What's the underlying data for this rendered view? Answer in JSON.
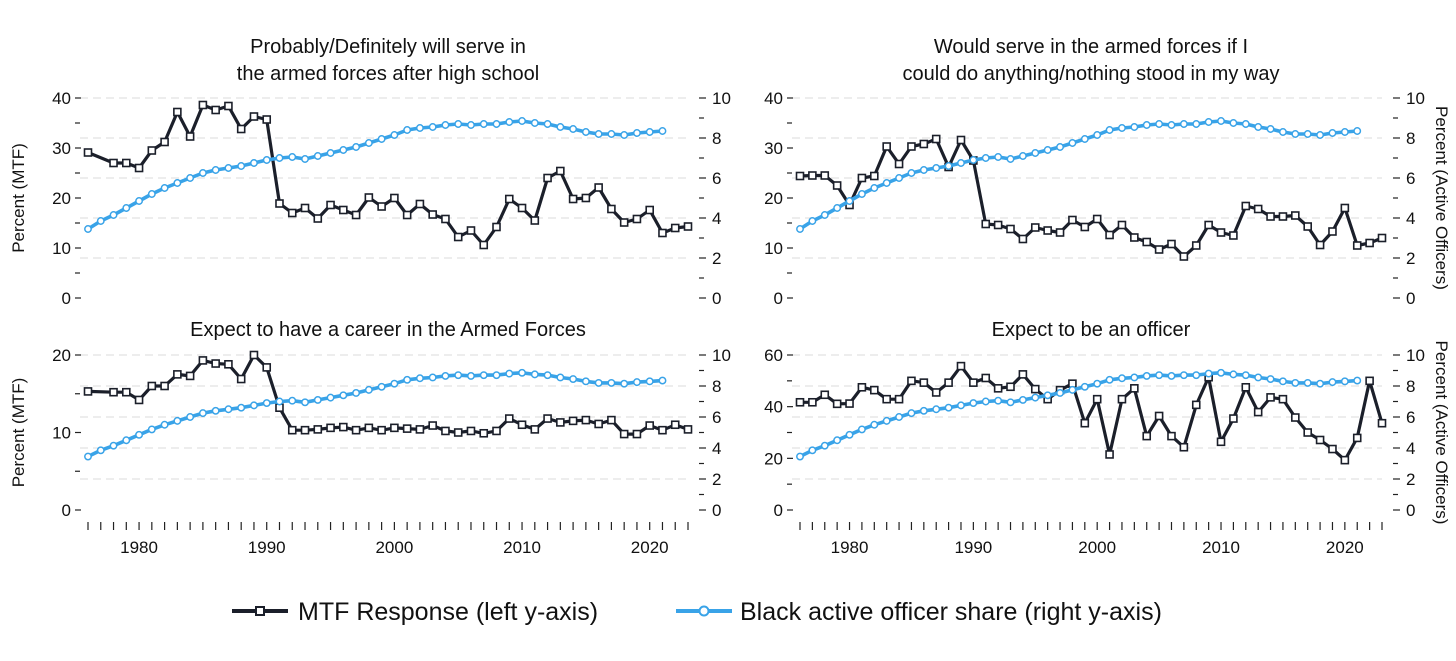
{
  "legend": {
    "mtf_label": "MTF Response (left y-axis)",
    "black_label": "Black active officer share (right y-axis)"
  },
  "colors": {
    "mtf": "#1b1f2a",
    "black": "#39a3e8",
    "grid": "#e2e2e2"
  },
  "chart_data": [
    {
      "type": "line",
      "title": [
        "Probably/Definitely will serve in",
        "the armed forces after high school"
      ],
      "ylabel_left": "Percent (MTF)",
      "ylabel_right": "",
      "xlim": [
        1976,
        2023
      ],
      "ylim_left": [
        0,
        40
      ],
      "ylim_right": [
        0,
        10
      ],
      "yticks_left": [
        0,
        10,
        20,
        30,
        40
      ],
      "yticks_right": [
        0,
        2,
        4,
        6,
        8,
        10
      ],
      "xticks": [
        1980,
        1990,
        2000,
        2010,
        2020
      ],
      "series": [
        {
          "name": "MTF Response (left y-axis)",
          "x": [
            1976,
            1978,
            1979,
            1980,
            1981,
            1982,
            1983,
            1984,
            1985,
            1986,
            1987,
            1988,
            1989,
            1990,
            1991,
            1992,
            1993,
            1994,
            1995,
            1996,
            1997,
            1998,
            1999,
            2000,
            2001,
            2002,
            2003,
            2004,
            2005,
            2006,
            2007,
            2008,
            2009,
            2010,
            2011,
            2012,
            2013,
            2014,
            2015,
            2016,
            2017,
            2018,
            2019,
            2020,
            2021,
            2022,
            2023
          ],
          "values": [
            29.1,
            27,
            27,
            26,
            29.5,
            31.2,
            37.2,
            32.3,
            38.6,
            37.6,
            38.4,
            33.8,
            36.3,
            35.7,
            18.9,
            17,
            18,
            15.9,
            18.6,
            17.6,
            16.6,
            20.1,
            18.3,
            20,
            16.6,
            18.8,
            16.7,
            15.8,
            12.2,
            13.5,
            10.6,
            14.2,
            19.8,
            18,
            15.5,
            24,
            25.4,
            19.8,
            20,
            22.1,
            17.8,
            15.1,
            15.8,
            17.6,
            13,
            14,
            14.3
          ]
        },
        {
          "name": "Black active officer share (right y-axis)",
          "x": [
            1976,
            1977,
            1978,
            1979,
            1980,
            1981,
            1982,
            1983,
            1984,
            1985,
            1986,
            1987,
            1988,
            1989,
            1990,
            1991,
            1992,
            1993,
            1994,
            1995,
            1996,
            1997,
            1998,
            1999,
            2000,
            2001,
            2002,
            2003,
            2004,
            2005,
            2006,
            2007,
            2008,
            2009,
            2010,
            2011,
            2012,
            2013,
            2014,
            2015,
            2016,
            2017,
            2018,
            2019,
            2020,
            2021
          ],
          "values": [
            3.45,
            3.85,
            4.15,
            4.5,
            4.85,
            5.2,
            5.5,
            5.75,
            6.0,
            6.25,
            6.4,
            6.5,
            6.6,
            6.75,
            6.9,
            7.0,
            7.05,
            6.95,
            7.1,
            7.25,
            7.4,
            7.55,
            7.75,
            7.95,
            8.15,
            8.4,
            8.5,
            8.55,
            8.65,
            8.7,
            8.65,
            8.7,
            8.7,
            8.8,
            8.85,
            8.75,
            8.7,
            8.55,
            8.45,
            8.3,
            8.2,
            8.2,
            8.15,
            8.25,
            8.3,
            8.35
          ]
        }
      ]
    },
    {
      "type": "line",
      "title": [
        "Would serve in the armed forces if I",
        "could do anything/nothing stood in my way"
      ],
      "ylabel_left": "",
      "ylabel_right": "Percent (Active Officers)",
      "xlim": [
        1976,
        2023
      ],
      "ylim_left": [
        0,
        40
      ],
      "ylim_right": [
        0,
        10
      ],
      "yticks_left": [
        0,
        10,
        20,
        30,
        40
      ],
      "yticks_right": [
        0,
        2,
        4,
        6,
        8,
        10
      ],
      "xticks": [
        1980,
        1990,
        2000,
        2010,
        2020
      ],
      "series": [
        {
          "name": "MTF Response (left y-axis)",
          "x": [
            1976,
            1977,
            1978,
            1979,
            1980,
            1981,
            1982,
            1983,
            1984,
            1985,
            1986,
            1987,
            1988,
            1989,
            1990,
            1991,
            1992,
            1993,
            1994,
            1995,
            1996,
            1997,
            1998,
            1999,
            2000,
            2001,
            2002,
            2003,
            2004,
            2005,
            2006,
            2007,
            2008,
            2009,
            2010,
            2011,
            2012,
            2013,
            2014,
            2015,
            2016,
            2017,
            2018,
            2019,
            2020,
            2021,
            2022,
            2023
          ],
          "values": [
            24.4,
            24.5,
            24.5,
            22.5,
            18.6,
            24,
            24.4,
            30.3,
            26.8,
            30.3,
            30.8,
            31.8,
            26.2,
            31.6,
            27.5,
            14.8,
            14.6,
            13.8,
            11.8,
            14.1,
            13.5,
            13.1,
            15.6,
            14.2,
            15.8,
            12.6,
            14.6,
            12.1,
            11.2,
            9.7,
            10.8,
            8.3,
            10.5,
            14.6,
            13.1,
            12.5,
            18.4,
            17.8,
            16.3,
            16.3,
            16.5,
            14.3,
            10.6,
            13.3,
            18,
            10.5,
            11,
            12
          ]
        },
        {
          "name": "Black active officer share (right y-axis)",
          "x": [
            1976,
            1977,
            1978,
            1979,
            1980,
            1981,
            1982,
            1983,
            1984,
            1985,
            1986,
            1987,
            1988,
            1989,
            1990,
            1991,
            1992,
            1993,
            1994,
            1995,
            1996,
            1997,
            1998,
            1999,
            2000,
            2001,
            2002,
            2003,
            2004,
            2005,
            2006,
            2007,
            2008,
            2009,
            2010,
            2011,
            2012,
            2013,
            2014,
            2015,
            2016,
            2017,
            2018,
            2019,
            2020,
            2021
          ],
          "values": [
            3.45,
            3.85,
            4.15,
            4.5,
            4.85,
            5.2,
            5.5,
            5.75,
            6.0,
            6.25,
            6.4,
            6.5,
            6.6,
            6.75,
            6.9,
            7.0,
            7.05,
            6.95,
            7.1,
            7.25,
            7.4,
            7.55,
            7.75,
            7.95,
            8.15,
            8.4,
            8.5,
            8.55,
            8.65,
            8.7,
            8.65,
            8.7,
            8.7,
            8.8,
            8.85,
            8.75,
            8.7,
            8.55,
            8.45,
            8.3,
            8.2,
            8.2,
            8.15,
            8.25,
            8.3,
            8.35
          ]
        }
      ]
    },
    {
      "type": "line",
      "title": [
        "Expect to have a career in the Armed Forces"
      ],
      "ylabel_left": "Percent (MTF)",
      "ylabel_right": "",
      "xlim": [
        1976,
        2023
      ],
      "ylim_left": [
        0,
        20
      ],
      "ylim_right": [
        0,
        10
      ],
      "yticks_left": [
        0,
        10,
        20
      ],
      "yticks_left_minor": [
        5,
        15
      ],
      "yticks_right": [
        0,
        2,
        4,
        6,
        8,
        10
      ],
      "xticks": [
        1980,
        1990,
        2000,
        2010,
        2020
      ],
      "series": [
        {
          "name": "MTF Response (left y-axis)",
          "x": [
            1976,
            1978,
            1979,
            1980,
            1981,
            1982,
            1983,
            1984,
            1985,
            1986,
            1987,
            1988,
            1989,
            1990,
            1991,
            1992,
            1993,
            1994,
            1995,
            1996,
            1997,
            1998,
            1999,
            2000,
            2001,
            2002,
            2003,
            2004,
            2005,
            2006,
            2007,
            2008,
            2009,
            2010,
            2011,
            2012,
            2013,
            2014,
            2015,
            2016,
            2017,
            2018,
            2019,
            2020,
            2021,
            2022,
            2023
          ],
          "values": [
            15.3,
            15.2,
            15.2,
            14.2,
            16,
            16,
            17.5,
            17.3,
            19.3,
            18.9,
            18.8,
            16.9,
            20,
            18.4,
            13.2,
            10.3,
            10.3,
            10.4,
            10.6,
            10.7,
            10.3,
            10.6,
            10.3,
            10.6,
            10.5,
            10.4,
            10.9,
            10.2,
            10,
            10.2,
            9.9,
            10.2,
            11.8,
            11,
            10.4,
            11.8,
            11.3,
            11.5,
            11.6,
            11.1,
            11.6,
            9.8,
            9.8,
            10.9,
            10.3,
            11,
            10.4
          ]
        },
        {
          "name": "Black active officer share (right y-axis)",
          "x": [
            1976,
            1977,
            1978,
            1979,
            1980,
            1981,
            1982,
            1983,
            1984,
            1985,
            1986,
            1987,
            1988,
            1989,
            1990,
            1991,
            1992,
            1993,
            1994,
            1995,
            1996,
            1997,
            1998,
            1999,
            2000,
            2001,
            2002,
            2003,
            2004,
            2005,
            2006,
            2007,
            2008,
            2009,
            2010,
            2011,
            2012,
            2013,
            2014,
            2015,
            2016,
            2017,
            2018,
            2019,
            2020,
            2021
          ],
          "values": [
            3.45,
            3.85,
            4.15,
            4.5,
            4.85,
            5.2,
            5.5,
            5.75,
            6.0,
            6.25,
            6.4,
            6.5,
            6.6,
            6.75,
            6.9,
            7.0,
            7.05,
            6.95,
            7.1,
            7.25,
            7.4,
            7.55,
            7.75,
            7.95,
            8.15,
            8.4,
            8.5,
            8.55,
            8.65,
            8.7,
            8.65,
            8.7,
            8.7,
            8.8,
            8.85,
            8.75,
            8.7,
            8.55,
            8.45,
            8.3,
            8.2,
            8.2,
            8.15,
            8.25,
            8.3,
            8.35
          ]
        }
      ]
    },
    {
      "type": "line",
      "title": [
        "Expect to be an officer"
      ],
      "ylabel_left": "",
      "ylabel_right": "Percent (Active Officers)",
      "xlim": [
        1976,
        2023
      ],
      "ylim_left": [
        0,
        60
      ],
      "ylim_right": [
        0,
        10
      ],
      "yticks_left": [
        0,
        20,
        40,
        60
      ],
      "yticks_left_minor": [
        10,
        30,
        50
      ],
      "yticks_right": [
        0,
        2,
        4,
        6,
        8,
        10
      ],
      "xticks": [
        1980,
        1990,
        2000,
        2010,
        2020
      ],
      "series": [
        {
          "name": "MTF Response (left y-axis)",
          "x": [
            1976,
            1977,
            1978,
            1979,
            1980,
            1981,
            1982,
            1983,
            1984,
            1985,
            1986,
            1987,
            1988,
            1989,
            1990,
            1991,
            1992,
            1993,
            1994,
            1995,
            1996,
            1997,
            1998,
            1999,
            2000,
            2001,
            2002,
            2003,
            2004,
            2005,
            2006,
            2007,
            2008,
            2009,
            2010,
            2011,
            2012,
            2013,
            2014,
            2015,
            2016,
            2017,
            2018,
            2019,
            2020,
            2021,
            2022,
            2023
          ],
          "values": [
            41.7,
            41.7,
            44.6,
            41.1,
            41.2,
            47.5,
            46.4,
            42.9,
            42.9,
            50,
            49.3,
            45.5,
            49.3,
            55.7,
            49.3,
            51.1,
            47.1,
            47.7,
            52.5,
            46.8,
            42.9,
            46.4,
            48.9,
            33.6,
            42.9,
            21.5,
            42.9,
            47.1,
            28.6,
            36.4,
            28.6,
            24.3,
            40.7,
            51.4,
            26.4,
            35.4,
            47.5,
            37.9,
            43.6,
            42.9,
            35.8,
            30,
            27.1,
            23.6,
            19.3,
            27.9,
            50,
            33.6
          ]
        },
        {
          "name": "Black active officer share (right y-axis)",
          "x": [
            1976,
            1977,
            1978,
            1979,
            1980,
            1981,
            1982,
            1983,
            1984,
            1985,
            1986,
            1987,
            1988,
            1989,
            1990,
            1991,
            1992,
            1993,
            1994,
            1995,
            1996,
            1997,
            1998,
            1999,
            2000,
            2001,
            2002,
            2003,
            2004,
            2005,
            2006,
            2007,
            2008,
            2009,
            2010,
            2011,
            2012,
            2013,
            2014,
            2015,
            2016,
            2017,
            2018,
            2019,
            2020,
            2021
          ],
          "values": [
            3.45,
            3.85,
            4.15,
            4.5,
            4.85,
            5.2,
            5.5,
            5.75,
            6.0,
            6.25,
            6.4,
            6.5,
            6.6,
            6.75,
            6.9,
            7.0,
            7.05,
            6.95,
            7.1,
            7.25,
            7.4,
            7.55,
            7.75,
            7.95,
            8.15,
            8.4,
            8.5,
            8.55,
            8.65,
            8.7,
            8.65,
            8.7,
            8.7,
            8.8,
            8.85,
            8.75,
            8.7,
            8.55,
            8.45,
            8.3,
            8.2,
            8.2,
            8.15,
            8.25,
            8.3,
            8.35
          ]
        }
      ]
    }
  ]
}
